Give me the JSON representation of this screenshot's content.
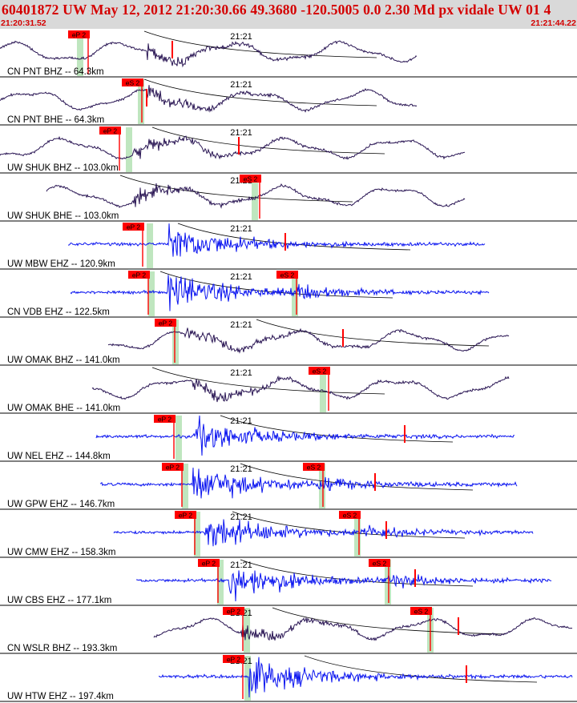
{
  "header": {
    "title": "60401872 UW May 12, 2012 21:20:30.66   49.3680 -120.5005  0.0 2.30 Md px vidale UW 01    4",
    "time_start": "21:20:31.52",
    "time_end": "21:21:44.22"
  },
  "colors": {
    "header_bg": "#d9d9d9",
    "header_text": "#d40000",
    "broadband_trace": "#2a1654",
    "short_period_trace": "#0a14f0",
    "pick_marker": "#ff0000",
    "pick_window": "#bfe6bf",
    "divider": "#000000"
  },
  "time_marker_label": "21:21",
  "traces": [
    {
      "label": "CN PNT BHZ -- 64.3km",
      "type": "broadband",
      "p_pick": "eP 2",
      "s_pick": ""
    },
    {
      "label": "CN PNT BHE -- 64.3km",
      "type": "broadband",
      "p_pick": "",
      "s_pick": "eS 2"
    },
    {
      "label": "UW SHUK BHZ -- 103.0km",
      "type": "broadband",
      "p_pick": "eP 2",
      "s_pick": ""
    },
    {
      "label": "UW SHUK BHE -- 103.0km",
      "type": "broadband",
      "p_pick": "",
      "s_pick": "eS 2"
    },
    {
      "label": "UW MBW EHZ -- 120.9km",
      "type": "short_period",
      "p_pick": "eP 2",
      "s_pick": ""
    },
    {
      "label": "CN VDB EHZ -- 122.5km",
      "type": "short_period",
      "p_pick": "eP 2",
      "s_pick": "eS 2"
    },
    {
      "label": "UW OMAK BHZ -- 141.0km",
      "type": "broadband",
      "p_pick": "eP 2",
      "s_pick": ""
    },
    {
      "label": "UW OMAK BHE -- 141.0km",
      "type": "broadband",
      "p_pick": "",
      "s_pick": "eS 2"
    },
    {
      "label": "UW NEL EHZ -- 144.8km",
      "type": "short_period",
      "p_pick": "eP 2",
      "s_pick": ""
    },
    {
      "label": "UW GPW EHZ -- 146.7km",
      "type": "short_period",
      "p_pick": "eP 2",
      "s_pick": "eS 2"
    },
    {
      "label": "UW CMW EHZ -- 158.3km",
      "type": "short_period",
      "p_pick": "eP 2",
      "s_pick": "eS 2"
    },
    {
      "label": "UW CBS EHZ -- 177.1km",
      "type": "short_period",
      "p_pick": "eP 2",
      "s_pick": "eS 2"
    },
    {
      "label": "CN WSLR BHZ -- 193.3km",
      "type": "broadband",
      "p_pick": "eP 2",
      "s_pick": "eS 2"
    },
    {
      "label": "UW HTW EHZ -- 197.4km",
      "type": "short_period",
      "p_pick": "eP 2",
      "s_pick": ""
    }
  ]
}
